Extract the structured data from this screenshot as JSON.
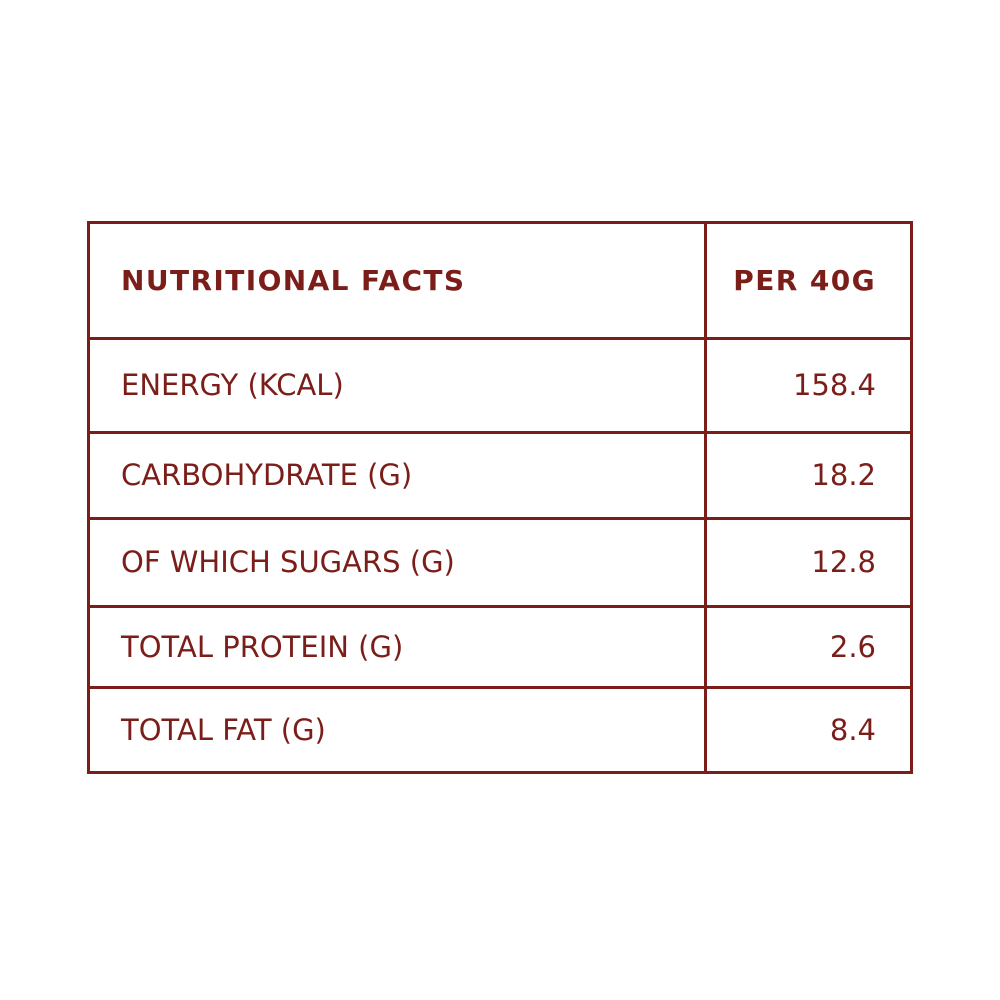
{
  "table": {
    "header": {
      "label": "NUTRITIONAL FACTS",
      "value": "PER 40G"
    },
    "rows": [
      {
        "label": "ENERGY (KCAL)",
        "value": "158.4"
      },
      {
        "label": "CARBOHYDRATE (G)",
        "value": "18.2"
      },
      {
        "label": "OF WHICH SUGARS (G)",
        "value": "12.8"
      },
      {
        "label": "TOTAL PROTEIN (G)",
        "value": "2.6"
      },
      {
        "label": "TOTAL FAT (G)",
        "value": "8.4"
      }
    ]
  },
  "colors": {
    "accent": "#7b1e1a",
    "background": "#ffffff"
  }
}
